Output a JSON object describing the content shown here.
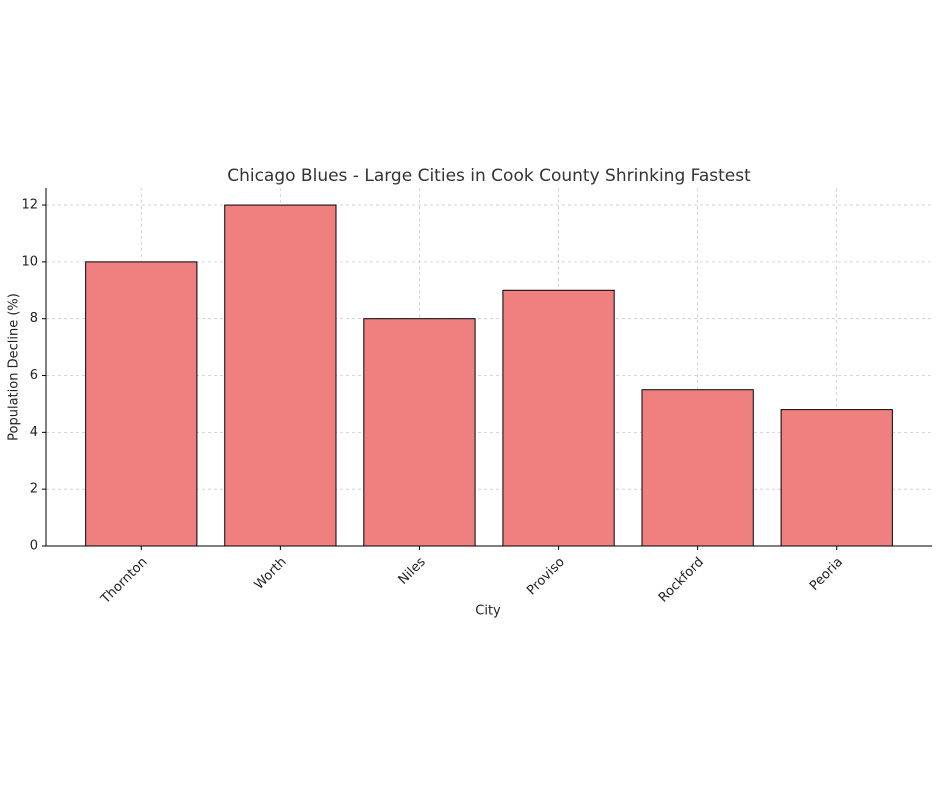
{
  "chart_data": {
    "type": "bar",
    "title": "Chicago Blues - Large Cities in Cook County Shrinking Fastest",
    "x_label": "City",
    "y_label": "Population Decline (%)",
    "categories": [
      "Thornton",
      "Worth",
      "Niles",
      "Proviso",
      "Rockford",
      "Peoria"
    ],
    "values": [
      10,
      12,
      8,
      9,
      5.5,
      4.8
    ],
    "color": "#f08080",
    "edge_color": "#000000",
    "ylim": [
      0,
      12.6
    ],
    "yticks": [
      0,
      2,
      4,
      6,
      8,
      10,
      12
    ],
    "grid": true
  }
}
